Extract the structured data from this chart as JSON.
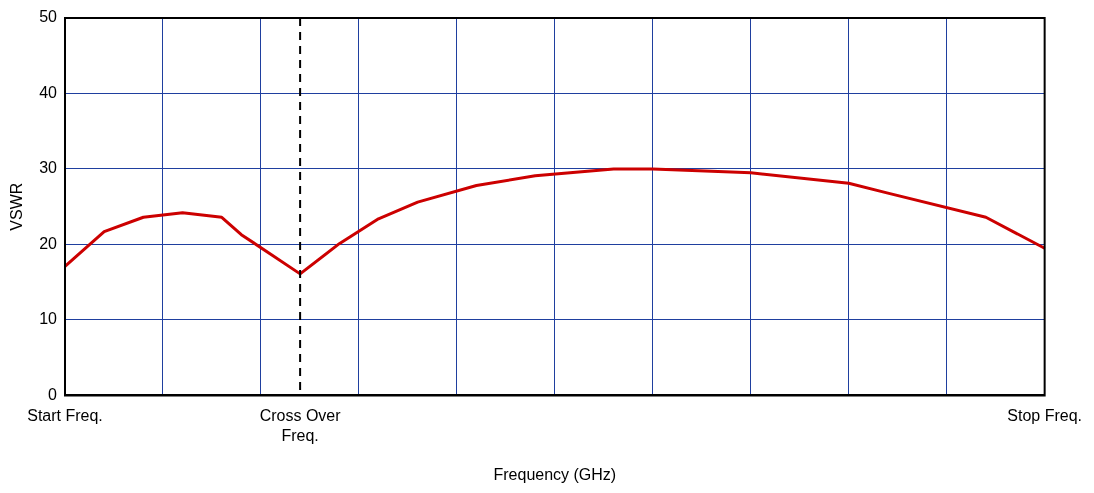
{
  "chart_data": {
    "type": "line",
    "xlabel": "Frequency (GHz)",
    "ylabel": "VSWR",
    "categories": [
      "Start Freq.",
      null,
      null,
      null,
      null,
      null,
      null,
      null,
      null,
      null,
      null,
      null,
      "Cross Over Freq.",
      null,
      null,
      null,
      null,
      null,
      null,
      null,
      null,
      null,
      null,
      null,
      null,
      null,
      null,
      null,
      null,
      null,
      null,
      null,
      null,
      null,
      null,
      null,
      null,
      null,
      null,
      null,
      null,
      null,
      null,
      null,
      null,
      null,
      null,
      null,
      null,
      null,
      "Stop Freq."
    ],
    "ylim": [
      0,
      50
    ],
    "yticks": [
      0,
      10,
      20,
      30,
      40,
      50
    ],
    "grid": true,
    "legend": false,
    "marker": "none",
    "line_style": "solid",
    "ref_lines": [
      {
        "axis": "x",
        "value": "Cross Over Freq.",
        "color": "#000000",
        "line_style": "dashed"
      }
    ],
    "series": [
      {
        "color": "#cc0000",
        "values": [
          17.1,
          null,
          21.7,
          null,
          23.6,
          null,
          24.2,
          null,
          23.6,
          21.3,
          null,
          null,
          16.1,
          null,
          20.1,
          null,
          23.4,
          null,
          25.6,
          null,
          null,
          27.8,
          null,
          null,
          29.1,
          null,
          null,
          null,
          30,
          null,
          30,
          null,
          null,
          null,
          null,
          29.5,
          null,
          null,
          null,
          null,
          28.1,
          null,
          26.8,
          null,
          null,
          null,
          null,
          23.6,
          null,
          null,
          19.5
        ]
      }
    ]
  }
}
